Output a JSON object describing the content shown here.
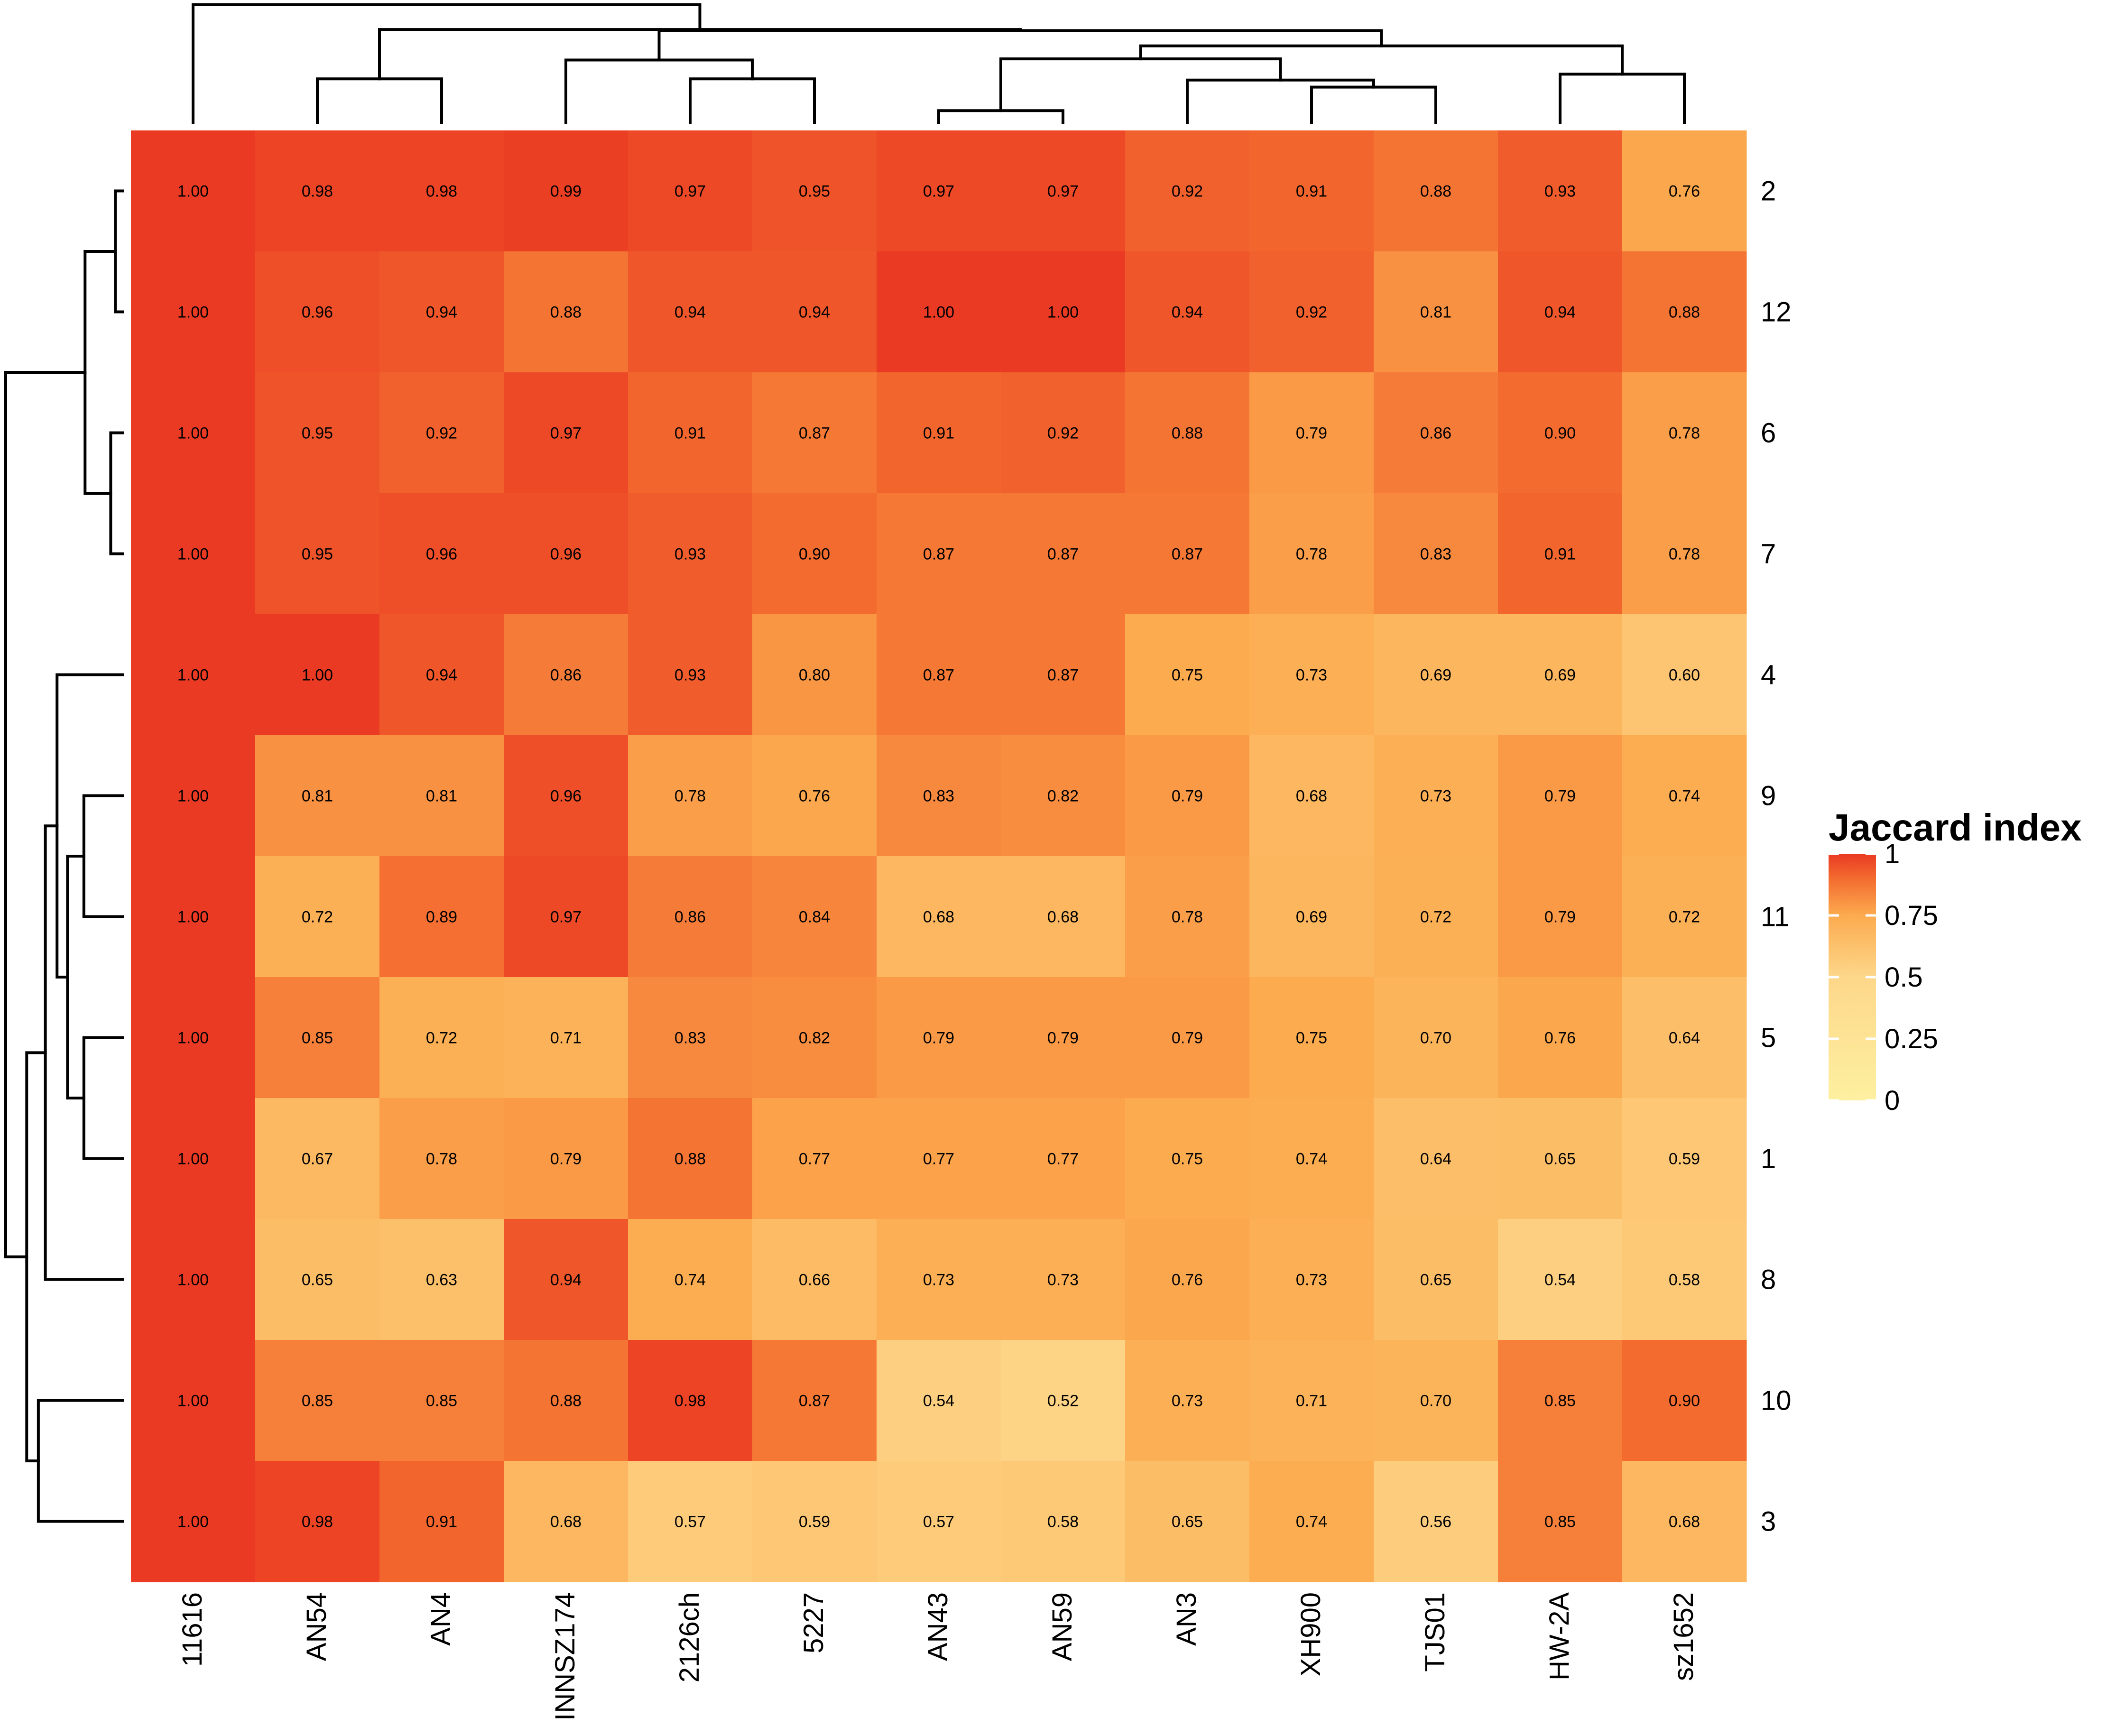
{
  "chart_data": {
    "type": "heatmap",
    "title": "",
    "xlabel": "",
    "ylabel": "",
    "columns": [
      "11616",
      "AN54",
      "AN4",
      "INNSZ174",
      "2126ch",
      "5227",
      "AN43",
      "AN59",
      "AN3",
      "XH900",
      "TJS01",
      "HW-2A",
      "sz1652"
    ],
    "rows": [
      "2",
      "12",
      "6",
      "7",
      "4",
      "9",
      "11",
      "5",
      "1",
      "8",
      "10",
      "3"
    ],
    "values": [
      [
        1.0,
        0.98,
        0.98,
        0.99,
        0.97,
        0.95,
        0.97,
        0.97,
        0.92,
        0.91,
        0.88,
        0.93,
        0.76
      ],
      [
        1.0,
        0.96,
        0.94,
        0.88,
        0.94,
        0.94,
        1.0,
        1.0,
        0.94,
        0.92,
        0.81,
        0.94,
        0.88
      ],
      [
        1.0,
        0.95,
        0.92,
        0.97,
        0.91,
        0.87,
        0.91,
        0.92,
        0.88,
        0.79,
        0.86,
        0.9,
        0.78
      ],
      [
        1.0,
        0.95,
        0.96,
        0.96,
        0.93,
        0.9,
        0.87,
        0.87,
        0.87,
        0.78,
        0.83,
        0.91,
        0.78
      ],
      [
        1.0,
        1.0,
        0.94,
        0.86,
        0.93,
        0.8,
        0.87,
        0.87,
        0.75,
        0.73,
        0.69,
        0.69,
        0.6
      ],
      [
        1.0,
        0.81,
        0.81,
        0.96,
        0.78,
        0.76,
        0.83,
        0.82,
        0.79,
        0.68,
        0.73,
        0.79,
        0.74
      ],
      [
        1.0,
        0.72,
        0.89,
        0.97,
        0.86,
        0.84,
        0.68,
        0.68,
        0.78,
        0.69,
        0.72,
        0.79,
        0.72
      ],
      [
        1.0,
        0.85,
        0.72,
        0.71,
        0.83,
        0.82,
        0.79,
        0.79,
        0.79,
        0.75,
        0.7,
        0.76,
        0.64
      ],
      [
        1.0,
        0.67,
        0.78,
        0.79,
        0.88,
        0.77,
        0.77,
        0.77,
        0.75,
        0.74,
        0.64,
        0.65,
        0.59
      ],
      [
        1.0,
        0.65,
        0.63,
        0.94,
        0.74,
        0.66,
        0.73,
        0.73,
        0.76,
        0.73,
        0.65,
        0.54,
        0.58
      ],
      [
        1.0,
        0.85,
        0.85,
        0.88,
        0.98,
        0.87,
        0.54,
        0.52,
        0.73,
        0.71,
        0.7,
        0.85,
        0.9
      ],
      [
        1.0,
        0.98,
        0.91,
        0.68,
        0.57,
        0.59,
        0.57,
        0.58,
        0.65,
        0.74,
        0.56,
        0.85,
        0.68
      ]
    ],
    "cell_label_format": "two decimals",
    "legend": {
      "title": "Jaccard index",
      "placement": "right",
      "range": [
        0,
        1
      ],
      "ticks": [
        "1",
        "0.75",
        "0.5",
        "0.25",
        "0"
      ],
      "tick_values": [
        1,
        0.75,
        0.5,
        0.25,
        0
      ]
    },
    "colorscale": [
      {
        "value": 0.0,
        "color": "#fdf0a0"
      },
      {
        "value": 0.5,
        "color": "#fdd78a"
      },
      {
        "value": 0.75,
        "color": "#fcab4f"
      },
      {
        "value": 0.9,
        "color": "#f36b2f"
      },
      {
        "value": 1.0,
        "color": "#ea3a23"
      }
    ],
    "row_dendrogram": {
      "placement": "left",
      "nodes": [
        {
          "left": "2",
          "right": "12",
          "height": 0.06
        },
        {
          "left": "6",
          "right": "7",
          "height": 0.1
        },
        {
          "left": "n0",
          "right": "n1",
          "height": 0.32
        },
        {
          "left": "9",
          "right": "11",
          "height": 0.33
        },
        {
          "left": "5",
          "right": "1",
          "height": 0.33
        },
        {
          "left": "n3",
          "right": "n4",
          "height": 0.47
        },
        {
          "left": "4",
          "right": "n5",
          "height": 0.56
        },
        {
          "left": "8",
          "right": "n6",
          "height": 0.66
        },
        {
          "left": "10",
          "right": "3",
          "height": 0.72
        },
        {
          "left": "n7",
          "right": "n8",
          "height": 0.82
        },
        {
          "left": "n2",
          "right": "n9",
          "height": 1.0
        }
      ]
    },
    "column_dendrogram": {
      "placement": "top",
      "nodes": [
        {
          "left": "AN43",
          "right": "AN59",
          "height": 0.1
        },
        {
          "left": "XH900",
          "right": "TJS01",
          "height": 0.3
        },
        {
          "left": "AN3",
          "right": "n1",
          "height": 0.36
        },
        {
          "left": "n0",
          "right": "n2",
          "height": 0.54
        },
        {
          "left": "HW-2A",
          "right": "sz1652",
          "height": 0.41
        },
        {
          "left": "n3",
          "right": "n4",
          "height": 0.65
        },
        {
          "left": "2126ch",
          "right": "5227",
          "height": 0.37
        },
        {
          "left": "INNSZ174",
          "right": "n6",
          "height": 0.53
        },
        {
          "left": "n5",
          "right": "n7",
          "height": 0.78
        },
        {
          "left": "AN54",
          "right": "AN4",
          "height": 0.37
        },
        {
          "left": "n9",
          "right": "n8",
          "height": 0.79
        },
        {
          "left": "11616",
          "right": "n10",
          "height": 1.0
        }
      ]
    }
  }
}
